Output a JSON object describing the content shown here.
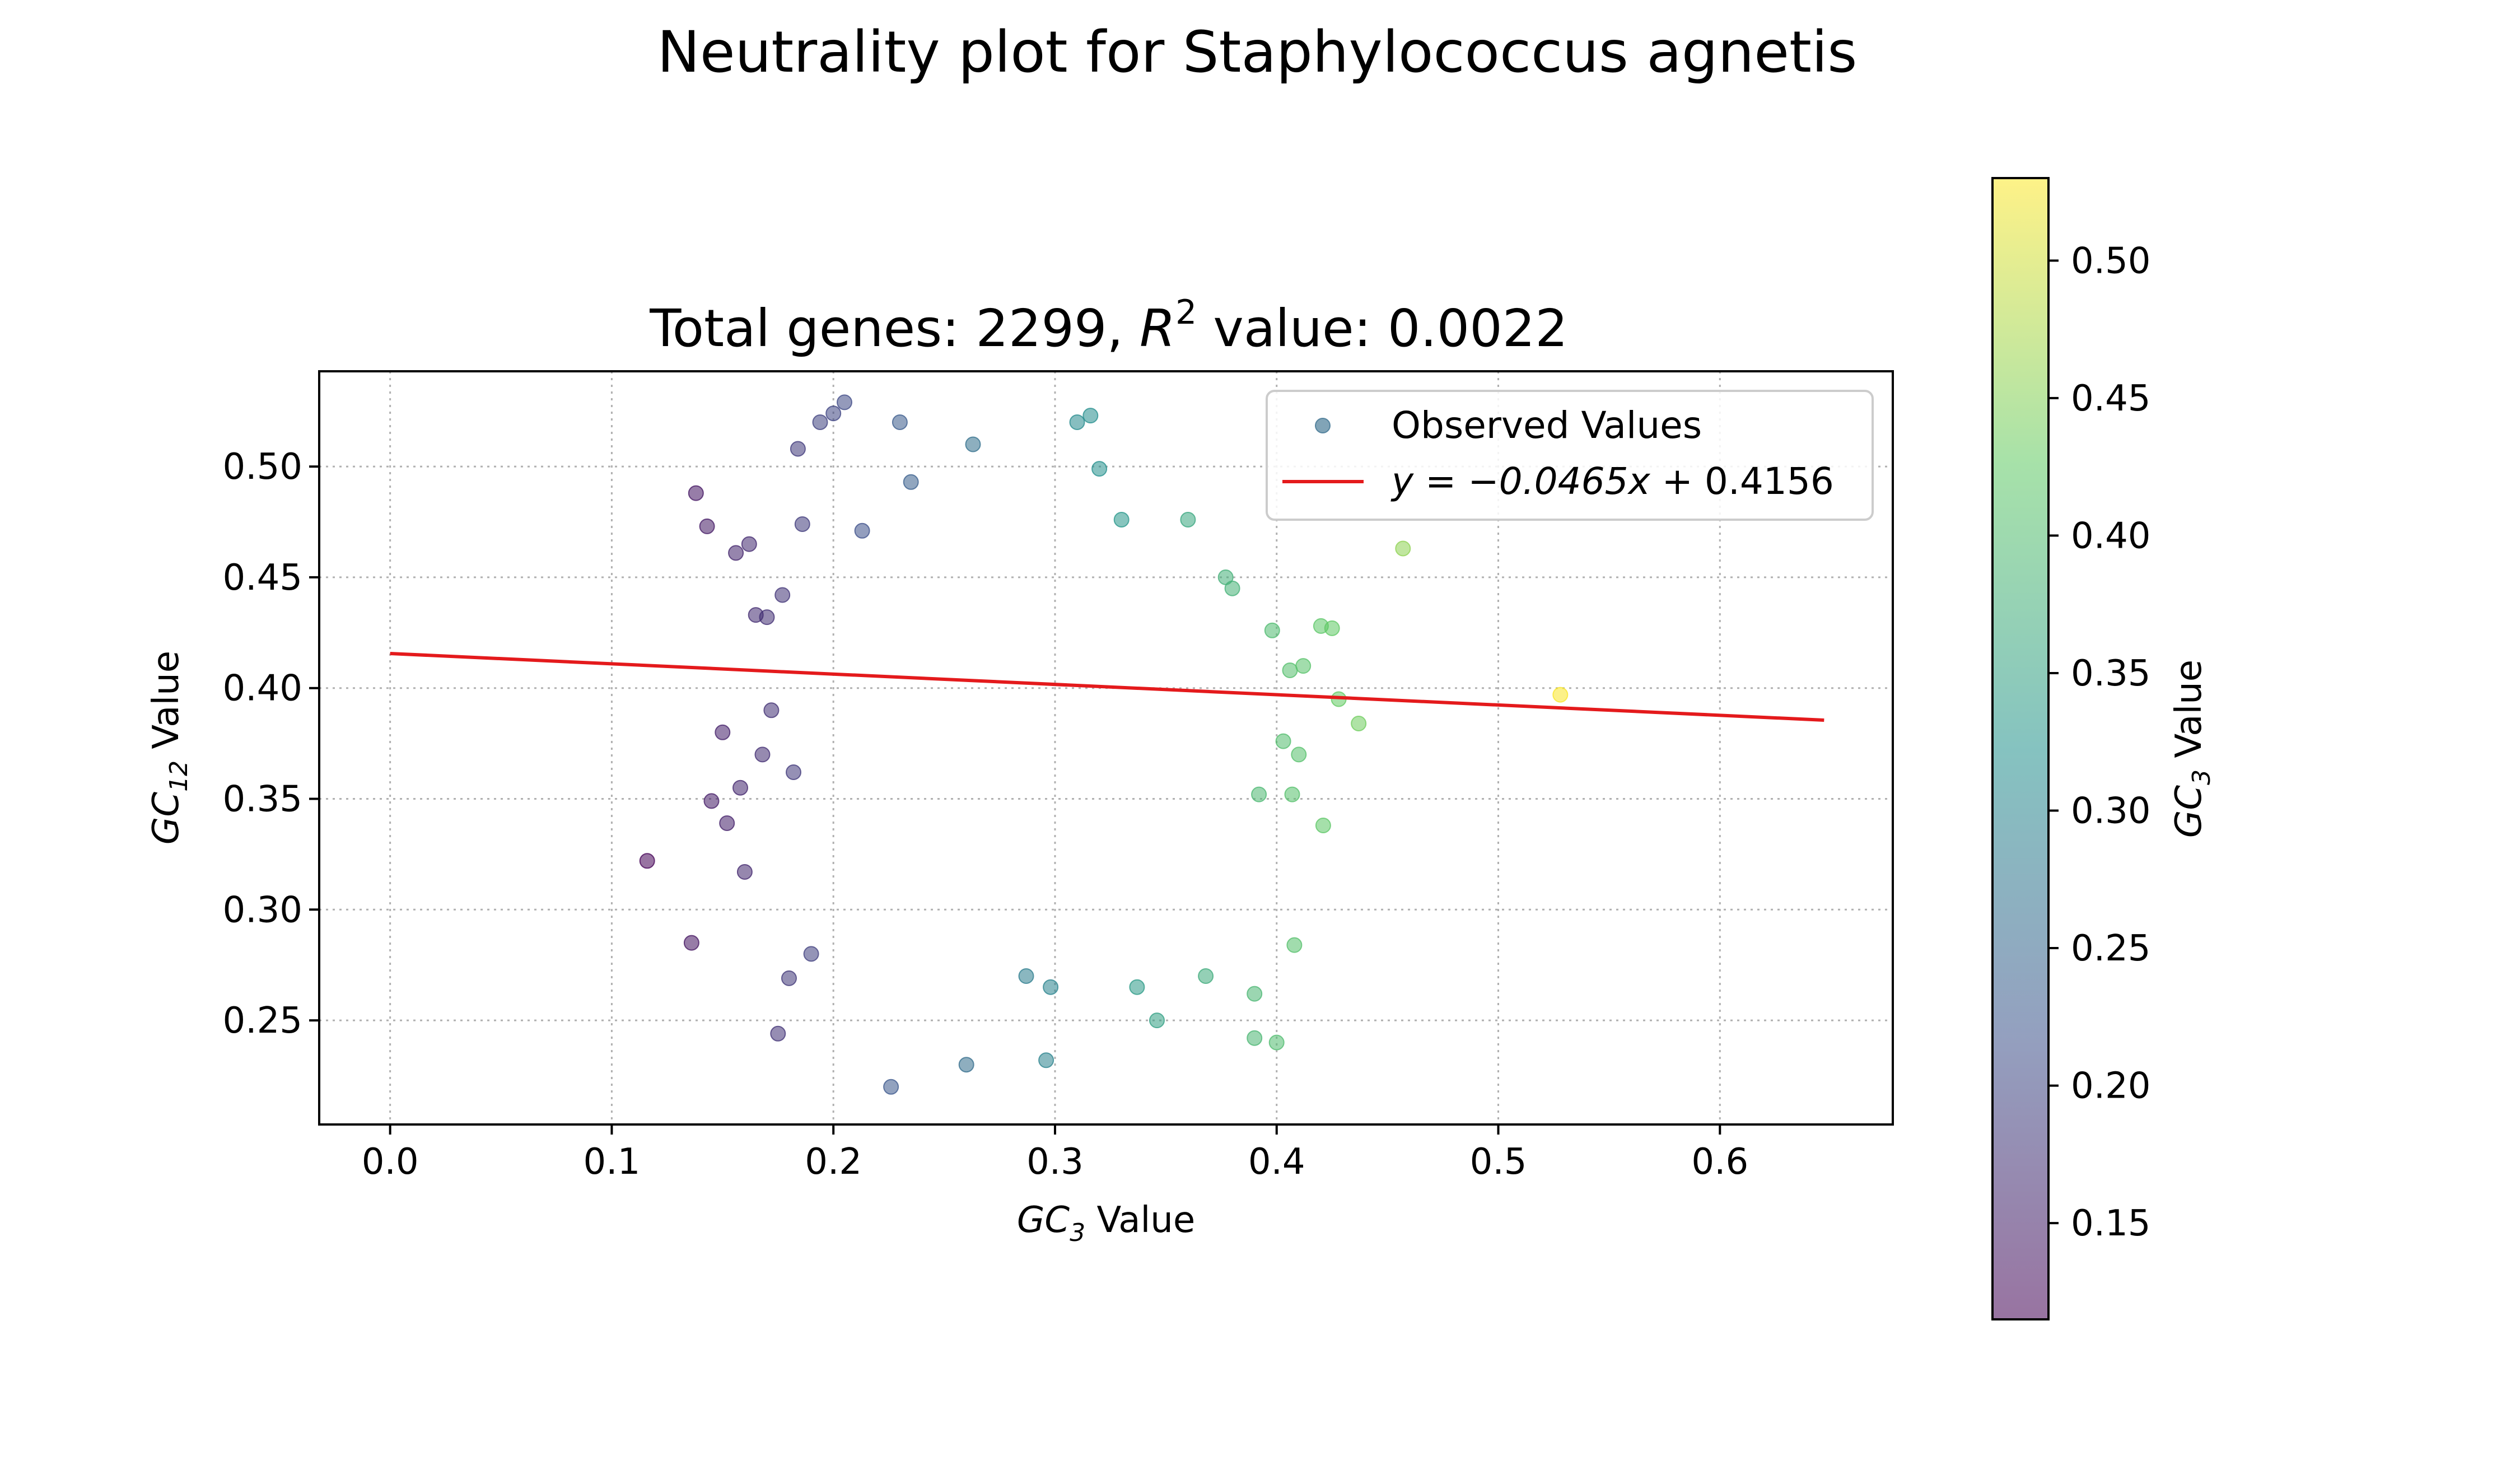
{
  "chart_data": {
    "type": "scatter",
    "suptitle": "Neutrality plot for Staphylococcus agnetis",
    "title": {
      "prefix": "Total genes: 2299, ",
      "r_symbol": "R",
      "r_sup": "2",
      "suffix": " value: 0.0022"
    },
    "xlabel": {
      "var": "GC",
      "sub": "3",
      "rest": " Value"
    },
    "ylabel": {
      "var": "GC",
      "sub": "12",
      "rest": " Value"
    },
    "xlim": [
      -0.032,
      0.678
    ],
    "ylim": [
      0.203,
      0.543
    ],
    "xticks": [
      0.0,
      0.1,
      0.2,
      0.3,
      0.4,
      0.5,
      0.6
    ],
    "xtick_labels": [
      "0.0",
      "0.1",
      "0.2",
      "0.3",
      "0.4",
      "0.5",
      "0.6"
    ],
    "yticks": [
      0.25,
      0.3,
      0.35,
      0.4,
      0.45,
      0.5
    ],
    "ytick_labels": [
      "0.25",
      "0.30",
      "0.35",
      "0.40",
      "0.45",
      "0.50"
    ],
    "grid": true,
    "legend_position": "upper-right",
    "legend": {
      "observed": "Observed Values",
      "fit_prefix": "y = −0.0465",
      "fit_x": "x",
      "fit_suffix": " + 0.4156"
    },
    "total_genes": 2299,
    "fit_line": {
      "slope": -0.0465,
      "intercept": 0.4156,
      "x_range": [
        0.0,
        0.647
      ],
      "color": "#e41a1c"
    },
    "colorbar": {
      "range": [
        0.115,
        0.53
      ],
      "ticks": [
        0.15,
        0.2,
        0.25,
        0.3,
        0.35,
        0.4,
        0.45,
        0.5
      ],
      "tick_labels": [
        "0.15",
        "0.20",
        "0.25",
        "0.30",
        "0.35",
        "0.40",
        "0.45",
        "0.50"
      ],
      "label": {
        "var": "GC",
        "sub": "3",
        "rest": " Value"
      },
      "colormap": "viridis",
      "alpha": 0.55
    },
    "points": [
      [
        0.116,
        0.322
      ],
      [
        0.136,
        0.285
      ],
      [
        0.138,
        0.488
      ],
      [
        0.143,
        0.473
      ],
      [
        0.145,
        0.349
      ],
      [
        0.15,
        0.38
      ],
      [
        0.152,
        0.339
      ],
      [
        0.156,
        0.461
      ],
      [
        0.158,
        0.355
      ],
      [
        0.16,
        0.317
      ],
      [
        0.162,
        0.465
      ],
      [
        0.165,
        0.433
      ],
      [
        0.168,
        0.37
      ],
      [
        0.17,
        0.432
      ],
      [
        0.172,
        0.39
      ],
      [
        0.175,
        0.244
      ],
      [
        0.177,
        0.442
      ],
      [
        0.18,
        0.269
      ],
      [
        0.182,
        0.362
      ],
      [
        0.184,
        0.508
      ],
      [
        0.186,
        0.474
      ],
      [
        0.19,
        0.28
      ],
      [
        0.194,
        0.52
      ],
      [
        0.2,
        0.524
      ],
      [
        0.205,
        0.529
      ],
      [
        0.213,
        0.471
      ],
      [
        0.226,
        0.22
      ],
      [
        0.23,
        0.52
      ],
      [
        0.235,
        0.493
      ],
      [
        0.26,
        0.23
      ],
      [
        0.263,
        0.51
      ],
      [
        0.287,
        0.27
      ],
      [
        0.296,
        0.232
      ],
      [
        0.298,
        0.265
      ],
      [
        0.31,
        0.52
      ],
      [
        0.316,
        0.523
      ],
      [
        0.32,
        0.499
      ],
      [
        0.33,
        0.476
      ],
      [
        0.337,
        0.265
      ],
      [
        0.346,
        0.25
      ],
      [
        0.36,
        0.476
      ],
      [
        0.368,
        0.27
      ],
      [
        0.377,
        0.45
      ],
      [
        0.38,
        0.445
      ],
      [
        0.39,
        0.242
      ],
      [
        0.39,
        0.262
      ],
      [
        0.392,
        0.352
      ],
      [
        0.398,
        0.426
      ],
      [
        0.4,
        0.24
      ],
      [
        0.403,
        0.376
      ],
      [
        0.406,
        0.408
      ],
      [
        0.407,
        0.352
      ],
      [
        0.408,
        0.284
      ],
      [
        0.41,
        0.37
      ],
      [
        0.412,
        0.41
      ],
      [
        0.42,
        0.428
      ],
      [
        0.421,
        0.338
      ],
      [
        0.425,
        0.427
      ],
      [
        0.428,
        0.395
      ],
      [
        0.437,
        0.384
      ],
      [
        0.457,
        0.463
      ],
      [
        0.528,
        0.397
      ]
    ]
  }
}
